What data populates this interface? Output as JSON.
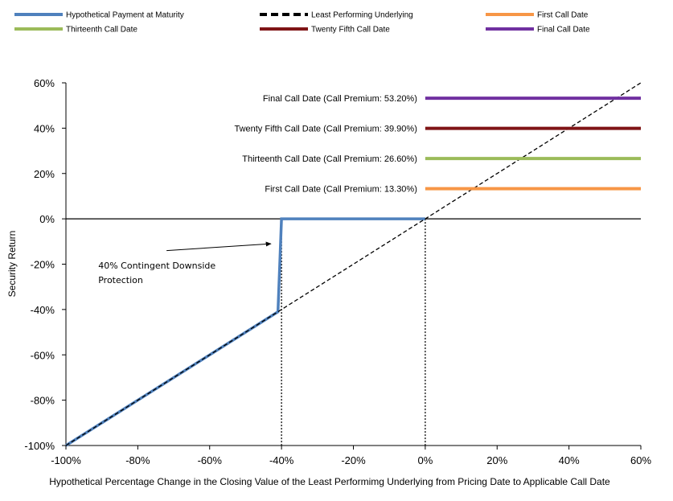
{
  "chart_data": {
    "type": "line",
    "title": "",
    "xlabel": "Hypothetical Percentage Change in the Closing Value of the Least Performimg Underlying from Pricing Date to Applicable Call Date",
    "ylabel": "Security Return",
    "xlim": [
      -100,
      60
    ],
    "ylim": [
      -100,
      60
    ],
    "x_ticks": [
      -100,
      -80,
      -60,
      -40,
      -20,
      0,
      20,
      40,
      60
    ],
    "y_ticks": [
      -100,
      -80,
      -60,
      -40,
      -20,
      0,
      20,
      40,
      60
    ],
    "x_tick_labels": [
      "-100%",
      "-80%",
      "-60%",
      "-40%",
      "-20%",
      "0%",
      "20%",
      "40%",
      "60%"
    ],
    "y_tick_labels": [
      "-100%",
      "-80%",
      "-60%",
      "-40%",
      "-20%",
      "0%",
      "20%",
      "40%",
      "60%"
    ],
    "grid": false,
    "legend_position": "top",
    "legend": [
      {
        "name": "Hypothetical Payment at Maturity",
        "color": "#4f81bd",
        "style": "solid"
      },
      {
        "name": "Least Performing Underlying",
        "color": "#000000",
        "style": "dashed"
      },
      {
        "name": "First Call Date",
        "color": "#f79646",
        "style": "solid"
      },
      {
        "name": "Thirteenth Call Date",
        "color": "#9bbb59",
        "style": "solid"
      },
      {
        "name": "Twenty Fifth Call Date",
        "color": "#7f1416",
        "style": "solid"
      },
      {
        "name": "Final Call Date",
        "color": "#7030a0",
        "style": "solid"
      }
    ],
    "series": [
      {
        "name": "Hypothetical Payment at Maturity",
        "color": "#4f81bd",
        "points": [
          [
            -100,
            -100
          ],
          [
            -41,
            -41
          ],
          [
            -40,
            0
          ],
          [
            0,
            0
          ]
        ]
      },
      {
        "name": "Least Performing Underlying",
        "color": "#000000",
        "points": [
          [
            -100,
            -100
          ],
          [
            60,
            60
          ]
        ]
      },
      {
        "name": "First Call Date",
        "color": "#f79646",
        "value": 13.3,
        "x_range": [
          0,
          60
        ]
      },
      {
        "name": "Thirteenth Call Date",
        "color": "#9bbb59",
        "value": 26.6,
        "x_range": [
          0,
          60
        ]
      },
      {
        "name": "Twenty Fifth Call Date",
        "color": "#7f1416",
        "value": 39.9,
        "x_range": [
          0,
          60
        ]
      },
      {
        "name": "Final Call Date",
        "color": "#7030a0",
        "value": 53.2,
        "x_range": [
          0,
          60
        ]
      }
    ],
    "series_labels": [
      {
        "text": "Final Call Date (Call Premium: 53.20%)",
        "y": 53.2
      },
      {
        "text": "Twenty Fifth Call Date (Call Premium: 39.90%)",
        "y": 39.9
      },
      {
        "text": "Thirteenth Call Date (Call Premium: 26.60%)",
        "y": 26.6
      },
      {
        "text": "First Call Date (Call Premium: 13.30%)",
        "y": 13.3
      }
    ],
    "reference_lines": [
      {
        "x": -40,
        "style": "dotted"
      },
      {
        "x": 0,
        "style": "dotted"
      }
    ],
    "annotation": {
      "lines": [
        "40% Contingent Downside",
        "Protection"
      ],
      "arrow_to": [
        -43,
        -11
      ],
      "arrow_from": [
        -72,
        -14
      ],
      "text_at": [
        -91,
        -22
      ]
    }
  }
}
